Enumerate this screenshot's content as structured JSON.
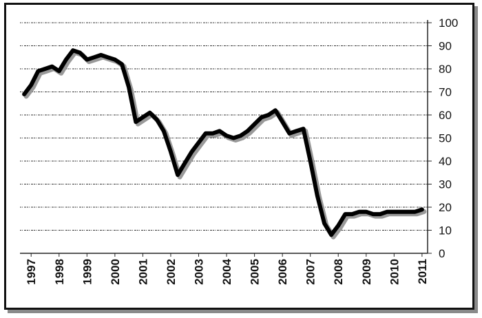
{
  "chart_data": {
    "type": "line",
    "title": "",
    "xlabel": "",
    "ylabel": "",
    "y_axis_side": "right",
    "ylim": [
      0,
      100
    ],
    "y_ticks": [
      0,
      10,
      20,
      30,
      40,
      50,
      60,
      70,
      80,
      90,
      100
    ],
    "x_ticks": [
      "1997",
      "1998",
      "1999",
      "2000",
      "2001",
      "2002",
      "2003",
      "2004",
      "2005",
      "2006",
      "2007",
      "2008",
      "2009",
      "2010",
      "2011"
    ],
    "grid": true,
    "legend": "none",
    "line_color": "#000000",
    "shadow_color": "#9a9a9a",
    "series": [
      {
        "x": [
          1996.75,
          1997.0,
          1997.25,
          1997.5,
          1997.75,
          1998.0,
          1998.25,
          1998.5,
          1998.75,
          1999.0,
          1999.25,
          1999.5,
          1999.75,
          2000.0,
          2000.25,
          2000.5,
          2000.75,
          2001.0,
          2001.25,
          2001.5,
          2001.75,
          2002.0,
          2002.25,
          2002.5,
          2002.75,
          2003.0,
          2003.25,
          2003.5,
          2003.75,
          2004.0,
          2004.25,
          2004.5,
          2004.75,
          2005.0,
          2005.25,
          2005.5,
          2005.75,
          2006.0,
          2006.25,
          2006.5,
          2006.75,
          2007.0,
          2007.25,
          2007.5,
          2007.75,
          2008.0,
          2008.25,
          2008.5,
          2008.75,
          2009.0,
          2009.25,
          2009.5,
          2009.75,
          2010.0,
          2010.25,
          2010.5,
          2010.75,
          2011.0
        ],
        "values": [
          69,
          73,
          79,
          80,
          81,
          79,
          84,
          88,
          87,
          84,
          85,
          86,
          85,
          84,
          82,
          72,
          57,
          59,
          61,
          58,
          53,
          44,
          34,
          39,
          44,
          48,
          52,
          52,
          53,
          51,
          50,
          51,
          53,
          56,
          59,
          60,
          62,
          57,
          52,
          53,
          54,
          40,
          25,
          13,
          8,
          12,
          17,
          17,
          18,
          18,
          17,
          17,
          18,
          18,
          18,
          18,
          18,
          19
        ]
      }
    ]
  }
}
